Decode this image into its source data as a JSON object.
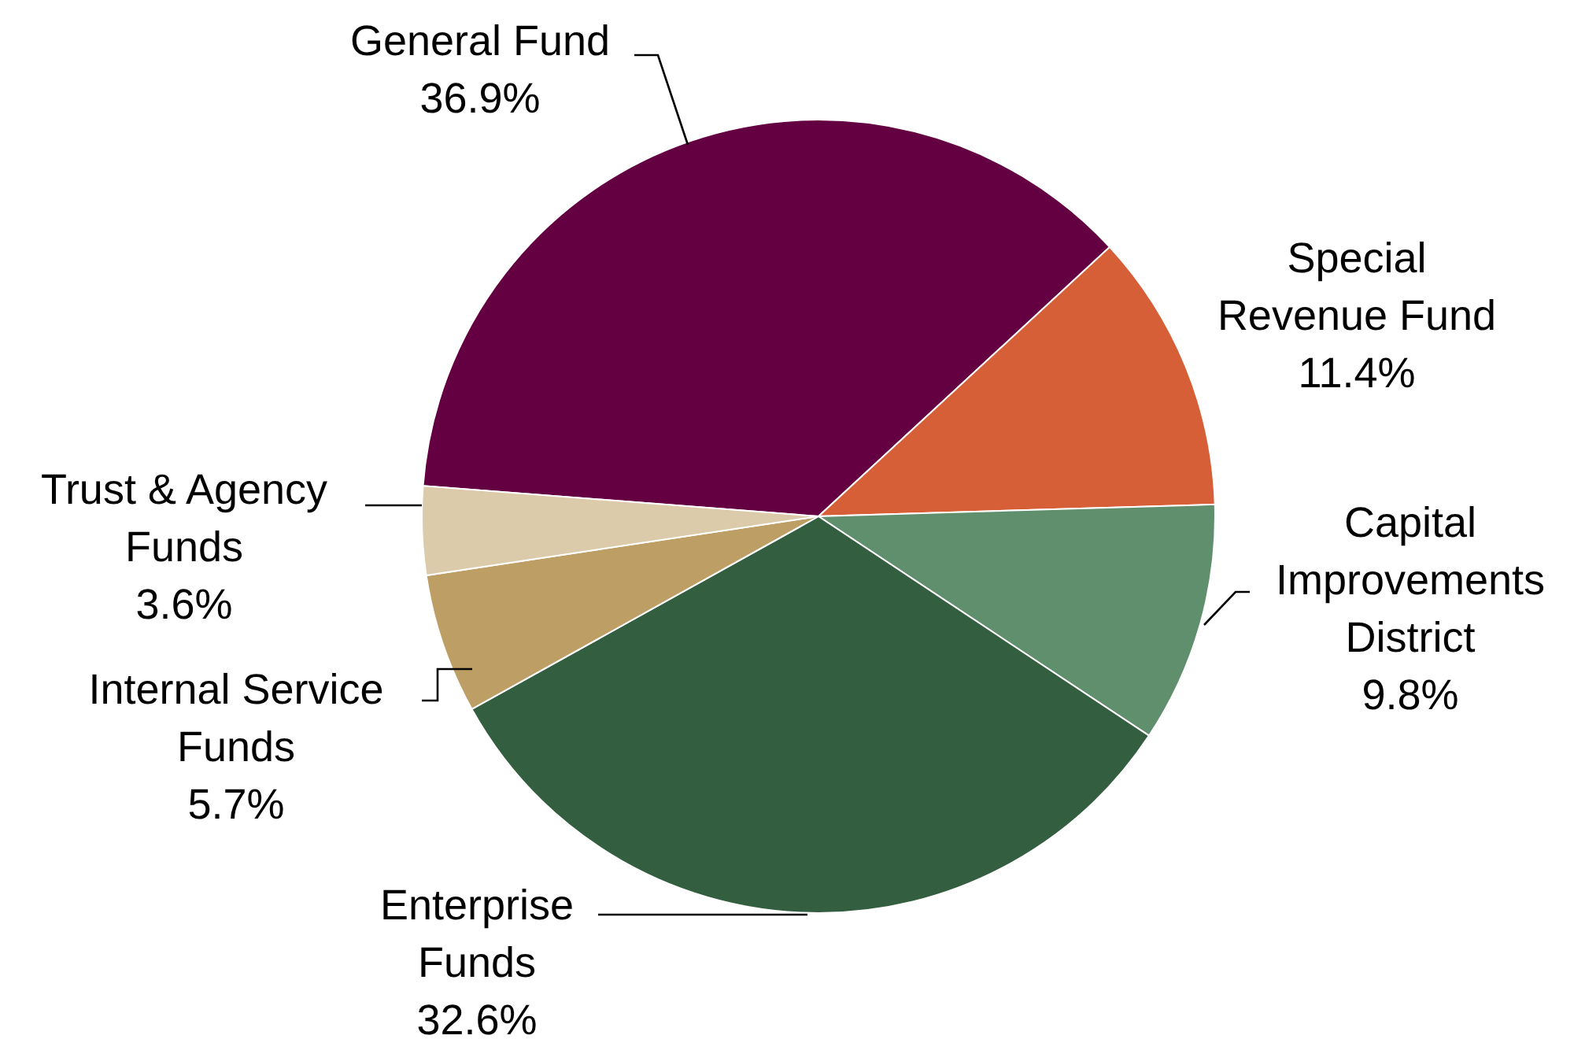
{
  "chart_data": {
    "type": "pie",
    "categories": [
      "General Fund",
      "Special\nRevenue Fund",
      "Capital\nImprovements\nDistrict",
      "Enterprise\nFunds",
      "Internal Service\nFunds",
      "Trust & Agency\nFunds"
    ],
    "values": [
      36.9,
      11.4,
      9.8,
      32.6,
      5.7,
      3.6
    ],
    "value_labels": [
      "36.9%",
      "11.4%",
      "9.8%",
      "32.6%",
      "5.7%",
      "3.6%"
    ],
    "colors": [
      "#640042",
      "#d65f37",
      "#5f8f6d",
      "#335e3f",
      "#bd9f65",
      "#dccbab"
    ],
    "legend": false
  }
}
